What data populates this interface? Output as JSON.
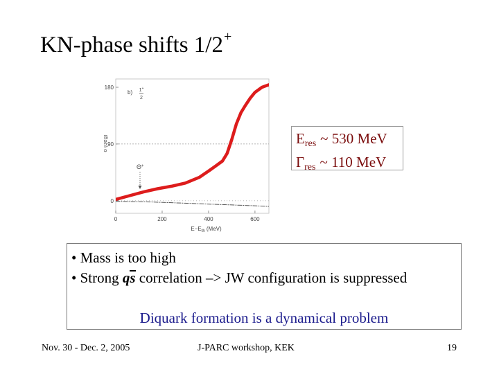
{
  "slide": {
    "title": "KN-phase shifts 1/2",
    "title_sup": "+"
  },
  "resonance": {
    "e_sym": "E",
    "e_sub": "res",
    "e_value": "~ 530 MeV",
    "g_sym": "Γ",
    "g_sub": "res",
    "g_value": "~ 110 MeV"
  },
  "bullets": {
    "item1": "• Mass is too high",
    "item2_pre": "• Strong ",
    "item2_q": "q",
    "item2_s": "s",
    "item2_post": " correlation –> JW configuration is suppressed",
    "note": "Diquark formation is a dynamical problem"
  },
  "footer": {
    "date": "Nov. 30 - Dec. 2, 2005",
    "event": "J-PARC workshop, KEK",
    "page": "19"
  },
  "chart_data": {
    "type": "line",
    "panel_label": "b)",
    "curve_label_num": "1",
    "curve_label_sup": "+",
    "curve_label_den": "2",
    "marker_label": "Θ",
    "marker_sup": "+",
    "ylabel": "δ (deg)",
    "xlabel": "E−E",
    "xlabel_sub": "th",
    "xlabel_unit": " (MeV)",
    "xlim": [
      0,
      660
    ],
    "ylim": [
      -20,
      180
    ],
    "xticks": [
      0,
      200,
      400,
      600
    ],
    "yticks": [
      0,
      90,
      180
    ],
    "dotted_levels": [
      90
    ],
    "series": [
      {
        "color": "#dd1c1c",
        "x": [
          0,
          60,
          120,
          180,
          240,
          300,
          360,
          400,
          430,
          460,
          480,
          500,
          520,
          540,
          560,
          580,
          600,
          630,
          660
        ],
        "y": [
          2,
          8,
          14,
          19,
          23,
          28,
          37,
          47,
          55,
          63,
          75,
          97,
          122,
          140,
          152,
          163,
          172,
          180,
          184
        ]
      },
      {
        "color": "#555555",
        "x": [
          0,
          150,
          300,
          450,
          600,
          660
        ],
        "y": [
          -1,
          -2,
          -4,
          -6,
          -8,
          -9
        ]
      }
    ]
  }
}
